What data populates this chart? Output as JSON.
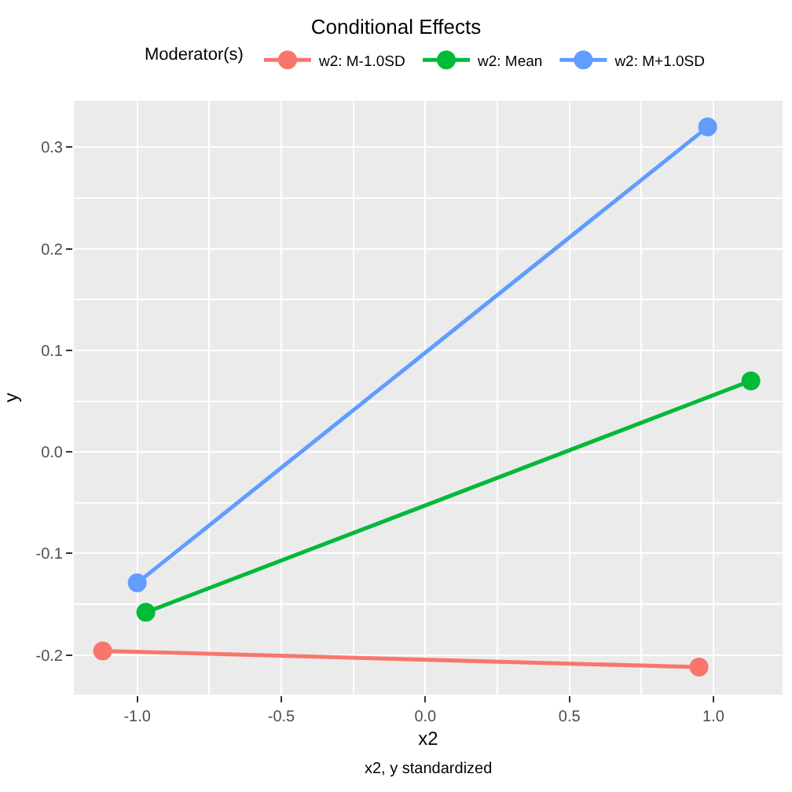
{
  "chart_data": {
    "type": "line",
    "title": "Conditional Effects",
    "xlabel": "x2",
    "ylabel": "y",
    "legend_title": "Moderator(s)",
    "annotations": [
      "x2, y standardized"
    ],
    "series": [
      {
        "name": "w2: M-1.0SD",
        "color": "#f8766d",
        "x": [
          -1.12,
          0.95
        ],
        "values": [
          -0.196,
          -0.212
        ]
      },
      {
        "name": "w2: Mean",
        "color": "#00ba38",
        "x": [
          -0.97,
          1.13
        ],
        "values": [
          -0.158,
          0.07
        ]
      },
      {
        "name": "w2: M+1.0SD",
        "color": "#619cff",
        "x": [
          -1.0,
          0.98
        ],
        "values": [
          -0.129,
          0.32
        ]
      }
    ],
    "xlim": [
      -1.22,
      1.24
    ],
    "ylim": [
      -0.239,
      0.346
    ],
    "xticks": [
      {
        "value": -1.0,
        "label": "-1.0"
      },
      {
        "value": -0.5,
        "label": "-0.5"
      },
      {
        "value": 0.0,
        "label": "0.0"
      },
      {
        "value": 0.5,
        "label": "0.5"
      },
      {
        "value": 1.0,
        "label": "1.0"
      }
    ],
    "yticks": [
      -0.2,
      -0.1,
      {
        "value": 0.0,
        "label": "0.0"
      },
      0.1,
      0.2,
      0.3
    ],
    "grid": true,
    "legend": "top",
    "marker": "circle",
    "line_style": "solid"
  }
}
